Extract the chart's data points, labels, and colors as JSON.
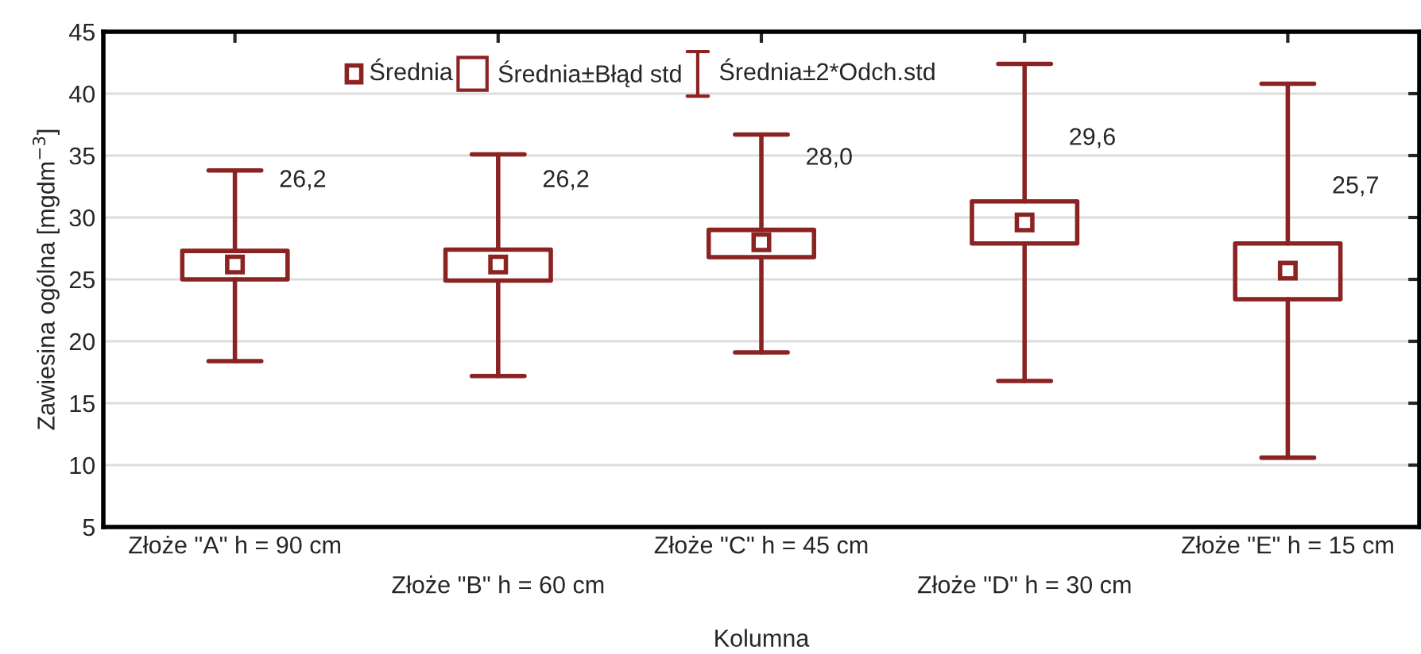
{
  "chart_data": {
    "type": "box",
    "xlabel": "Kolumna",
    "ylabel": "Zawiesina ogólna [mgdm$^{−3}$]",
    "categories": [
      "Złoże \"A\" h = 90 cm",
      "Złoże \"B\" h = 60 cm",
      "Złoże \"C\" h = 45 cm",
      "Złoże \"D\" h = 30 cm",
      "Złoże \"E\" h = 15 cm"
    ],
    "color": "#8b2323",
    "boxes": [
      {
        "low": 18.4,
        "q1": 25.0,
        "median": 26.2,
        "q3": 27.3,
        "high": 33.8
      },
      {
        "low": 17.2,
        "q1": 24.9,
        "median": 26.2,
        "q3": 27.4,
        "high": 35.1
      },
      {
        "low": 19.1,
        "q1": 26.8,
        "median": 28.0,
        "q3": 29.0,
        "high": 36.7
      },
      {
        "low": 16.8,
        "q1": 27.9,
        "median": 29.6,
        "q3": 31.3,
        "high": 42.4
      },
      {
        "low": 10.6,
        "q1": 23.4,
        "median": 25.7,
        "q3": 27.9,
        "high": 40.8
      }
    ],
    "value_labels": [
      "26,2",
      "26,2",
      "28,0",
      "29,6",
      "25,7"
    ],
    "annotations": [
      "Średnia",
      "Średnia±Błąd std",
      "Średnia±2*Odch.std"
    ],
    "ylim": [
      5,
      45
    ],
    "yticks": [
      5,
      10,
      15,
      20,
      25,
      30,
      35,
      40,
      45
    ],
    "grid": "y"
  }
}
